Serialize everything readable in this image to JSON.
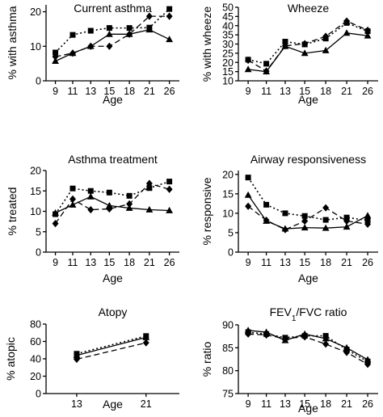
{
  "chart_data": [
    {
      "type": "line",
      "title": "Current asthma",
      "xlabel": "Age",
      "ylabel": "% with asthma",
      "categories": [
        "9",
        "11",
        "13",
        "15",
        "18",
        "21",
        "26"
      ],
      "yticks": [
        "0",
        "10",
        "20"
      ],
      "ylim": [
        0,
        22
      ],
      "grid": false,
      "series": [
        {
          "marker": "square",
          "dash": "dotted",
          "values": [
            8.2,
            13.3,
            14.5,
            15.3,
            15.3,
            15.4,
            20.8
          ]
        },
        {
          "marker": "diamond",
          "dash": "dashed",
          "values": [
            7.0,
            8.0,
            10.0,
            10.0,
            13.5,
            18.7,
            18.7
          ]
        },
        {
          "marker": "triangle",
          "dash": "solid",
          "values": [
            5.7,
            8.0,
            10.0,
            13.5,
            13.5,
            14.8,
            12.0
          ]
        }
      ]
    },
    {
      "type": "line",
      "title": "Wheeze",
      "xlabel": "Age",
      "ylabel": "% with wheeze",
      "categories": [
        "9",
        "11",
        "13",
        "15",
        "18",
        "21",
        "26"
      ],
      "yticks": [
        "10",
        "15",
        "20",
        "25",
        "30",
        "35",
        "40",
        "45",
        "50"
      ],
      "ylim": [
        10,
        50
      ],
      "grid": false,
      "series": [
        {
          "marker": "square",
          "dash": "dotted",
          "values": [
            21.5,
            19.3,
            31.3,
            29.8,
            33.0,
            41.5,
            37.0
          ]
        },
        {
          "marker": "diamond",
          "dash": "dashed",
          "values": [
            21.2,
            15.3,
            29.0,
            30.2,
            34.2,
            42.5,
            37.5
          ]
        },
        {
          "marker": "triangle",
          "dash": "solid",
          "values": [
            16.2,
            15.0,
            28.8,
            25.0,
            26.5,
            36.0,
            34.5
          ]
        }
      ]
    },
    {
      "type": "line",
      "title": "Asthma treatment",
      "xlabel": "Age",
      "ylabel": "% treated",
      "categories": [
        "9",
        "11",
        "13",
        "15",
        "18",
        "21",
        "26"
      ],
      "yticks": [
        "0",
        "5",
        "10",
        "15",
        "20"
      ],
      "ylim": [
        0,
        20
      ],
      "grid": false,
      "series": [
        {
          "marker": "square",
          "dash": "dotted",
          "values": [
            9.3,
            15.6,
            15.0,
            14.6,
            13.8,
            15.7,
            17.3
          ]
        },
        {
          "marker": "diamond",
          "dash": "dashed",
          "values": [
            7.0,
            13.0,
            10.4,
            10.6,
            11.8,
            16.8,
            15.4
          ]
        },
        {
          "marker": "triangle",
          "dash": "solid",
          "values": [
            9.6,
            11.6,
            13.6,
            11.4,
            10.8,
            10.4,
            10.2
          ]
        }
      ]
    },
    {
      "type": "line",
      "title": "Airway responsiveness",
      "xlabel": "Age",
      "ylabel": "% responsive",
      "categories": [
        "9",
        "11",
        "13",
        "15",
        "18",
        "21",
        "26"
      ],
      "yticks": [
        "0",
        "5",
        "10",
        "15",
        "20"
      ],
      "ylim": [
        0,
        21
      ],
      "grid": false,
      "series": [
        {
          "marker": "square",
          "dash": "dotted",
          "values": [
            19.2,
            12.2,
            10.0,
            9.3,
            8.3,
            8.9,
            8.2
          ]
        },
        {
          "marker": "diamond",
          "dash": "dashed",
          "values": [
            11.8,
            8.2,
            5.8,
            8.0,
            11.4,
            8.0,
            7.2
          ]
        },
        {
          "marker": "triangle",
          "dash": "solid",
          "values": [
            14.7,
            8.0,
            6.0,
            6.3,
            6.2,
            6.5,
            9.4
          ]
        }
      ]
    },
    {
      "type": "line",
      "title": "Atopy",
      "xlabel": "Age",
      "ylabel": "% atopic",
      "categories": [
        "13",
        "21"
      ],
      "yticks": [
        "0",
        "20",
        "40",
        "60",
        "80"
      ],
      "ylim": [
        0,
        80
      ],
      "grid": false,
      "series": [
        {
          "marker": "square",
          "dash": "dotted",
          "values": [
            45.8,
            66.2
          ]
        },
        {
          "marker": "diamond",
          "dash": "dashed",
          "values": [
            39.5,
            58.5
          ]
        },
        {
          "marker": "triangle",
          "dash": "solid",
          "values": [
            44.0,
            64.7
          ]
        }
      ]
    },
    {
      "type": "line",
      "title": "FEV1/FVC ratio",
      "title_main": "FEV",
      "title_sub": "1",
      "title_rest": "/FVC ratio",
      "xlabel": "Age",
      "ylabel": "% ratio",
      "categories": [
        "9",
        "11",
        "13",
        "15",
        "18",
        "21",
        "26"
      ],
      "yticks": [
        "75",
        "80",
        "85",
        "90"
      ],
      "ylim": [
        75,
        90
      ],
      "grid": false,
      "series": [
        {
          "marker": "square",
          "dash": "dotted",
          "values": [
            88.4,
            88.0,
            87.2,
            87.6,
            87.6,
            84.6,
            82.0
          ]
        },
        {
          "marker": "diamond",
          "dash": "dashed",
          "values": [
            88.0,
            87.8,
            87.0,
            87.4,
            85.8,
            84.0,
            81.4
          ]
        },
        {
          "marker": "triangle",
          "dash": "solid",
          "values": [
            88.8,
            88.4,
            86.6,
            88.0,
            87.0,
            85.0,
            82.4
          ]
        }
      ]
    }
  ]
}
